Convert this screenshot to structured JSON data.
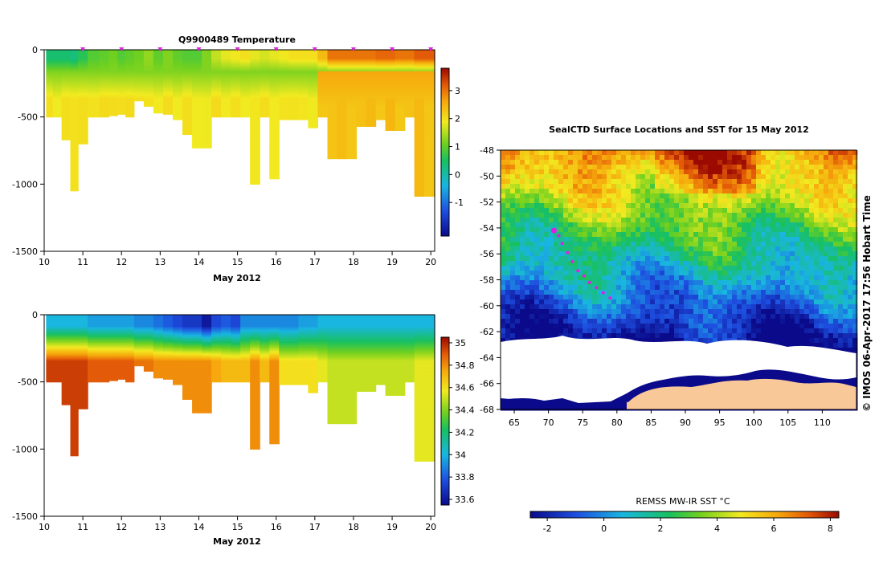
{
  "chart_data": [
    {
      "type": "heatmap",
      "title": "Q9900489  Temperature",
      "xlabel": "May 2012",
      "ylabel": "",
      "xlim": [
        10,
        20.1
      ],
      "ylim": [
        -1500,
        0
      ],
      "x_ticks": [
        "10",
        "11",
        "12",
        "13",
        "14",
        "15",
        "16",
        "17",
        "18",
        "19",
        "20"
      ],
      "y_ticks": [
        "0",
        "-500",
        "-1000",
        "-1500"
      ],
      "colorbar": {
        "range": [
          -2.2,
          3.8
        ],
        "ticks": [
          "3",
          "2",
          "1",
          "0",
          "-1"
        ]
      },
      "profile_times": [
        10.1,
        10.35,
        10.55,
        10.8,
        10.95,
        11.3,
        11.55,
        11.8,
        12.0,
        12.2,
        12.45,
        12.7,
        12.95,
        13.2,
        13.45,
        13.7,
        13.95,
        14.2,
        14.45,
        14.7,
        14.95,
        15.2,
        15.45,
        15.7,
        15.95,
        16.2,
        16.45,
        16.7,
        16.95,
        17.2,
        17.45,
        17.7,
        17.95,
        18.2,
        18.45,
        18.7,
        18.95,
        19.2,
        19.45,
        19.7,
        19.95
      ],
      "profile_max_depth": [
        500,
        500,
        670,
        1050,
        700,
        500,
        500,
        490,
        480,
        500,
        380,
        420,
        470,
        480,
        520,
        630,
        730,
        730,
        500,
        500,
        500,
        500,
        1000,
        500,
        960,
        520,
        520,
        520,
        580,
        500,
        810,
        810,
        810,
        570,
        570,
        520,
        600,
        600,
        500,
        1090,
        1090
      ],
      "surface_value": [
        0.4,
        0.4,
        0.4,
        0.3,
        0.6,
        0.9,
        1.0,
        1.1,
        0.9,
        1.0,
        1.1,
        1.3,
        1.0,
        1.2,
        1.0,
        0.9,
        0.9,
        1.2,
        1.6,
        1.8,
        1.9,
        2.0,
        1.8,
        1.7,
        1.8,
        1.9,
        2.0,
        2.0,
        2.0,
        2.4,
        3.0,
        3.0,
        3.0,
        3.0,
        3.0,
        3.1,
        3.1,
        3.0,
        3.0,
        3.2,
        3.2
      ],
      "markers": [
        11,
        12,
        13,
        14,
        15,
        16,
        17,
        18,
        19,
        20
      ]
    },
    {
      "type": "heatmap",
      "title": "",
      "xlabel": "May 2012",
      "ylabel": "",
      "xlim": [
        10,
        20.1
      ],
      "ylim": [
        -1500,
        0
      ],
      "x_ticks": [
        "10",
        "11",
        "12",
        "13",
        "14",
        "15",
        "16",
        "17",
        "18",
        "19",
        "20"
      ],
      "y_ticks": [
        "0",
        "-500",
        "-1000",
        "-1500"
      ],
      "colorbar": {
        "range": [
          33.55,
          35.05
        ],
        "ticks": [
          "35",
          "34.8",
          "34.6",
          "34.4",
          "34.2",
          "34",
          "33.8",
          "33.6"
        ]
      },
      "surface_value": [
        34.0,
        34.0,
        34.0,
        34.0,
        34.0,
        33.95,
        33.95,
        33.95,
        33.95,
        33.95,
        33.9,
        33.9,
        33.85,
        33.8,
        33.75,
        33.7,
        33.7,
        33.6,
        33.75,
        33.8,
        33.75,
        33.9,
        33.9,
        33.9,
        33.9,
        33.9,
        33.9,
        33.95,
        33.95,
        34.0,
        34.0,
        34.0,
        34.0,
        34.0,
        34.0,
        34.0,
        34.0,
        34.0,
        34.0,
        34.0,
        34.0
      ],
      "deep_value": [
        34.95,
        34.95,
        34.95,
        34.95,
        34.95,
        34.9,
        34.9,
        34.9,
        34.9,
        34.9,
        34.85,
        34.85,
        34.8,
        34.8,
        34.8,
        34.8,
        34.8,
        34.8,
        34.75,
        34.7,
        34.7,
        34.7,
        34.8,
        34.7,
        34.8,
        34.6,
        34.6,
        34.6,
        34.6,
        34.55,
        34.5,
        34.5,
        34.5,
        34.5,
        34.5,
        34.5,
        34.5,
        34.5,
        34.5,
        34.55,
        34.55
      ]
    },
    {
      "type": "heatmap",
      "title": "SealCTD Surface Locations and SST for 15 May 2012",
      "xlabel": "",
      "ylabel": "",
      "xlim": [
        63,
        115
      ],
      "ylim": [
        -68,
        -48
      ],
      "x_ticks": [
        "65",
        "70",
        "75",
        "80",
        "85",
        "90",
        "95",
        "100",
        "105",
        "110"
      ],
      "y_ticks": [
        "-48",
        "-50",
        "-52",
        "-54",
        "-56",
        "-58",
        "-60",
        "-62",
        "-64",
        "-66",
        "-68"
      ],
      "colorbar": {
        "label": "REMSS MW-IR SST °C",
        "range": [
          -2.6,
          8.3
        ],
        "ticks": [
          "-2",
          "0",
          "2",
          "4",
          "6",
          "8"
        ]
      },
      "seal_track": [
        [
          70.8,
          -54.2
        ],
        [
          71.5,
          -54.6
        ],
        [
          72.0,
          -55.2
        ],
        [
          72.8,
          -55.9
        ],
        [
          73.5,
          -56.6
        ],
        [
          74.3,
          -57.3
        ],
        [
          75.2,
          -57.7
        ],
        [
          76.0,
          -58.2
        ],
        [
          77.0,
          -58.6
        ],
        [
          78.0,
          -59.0
        ],
        [
          79.0,
          -59.4
        ]
      ],
      "credit": "© IMOS 06-Apr-2017 17:56 Hobart Time"
    }
  ]
}
